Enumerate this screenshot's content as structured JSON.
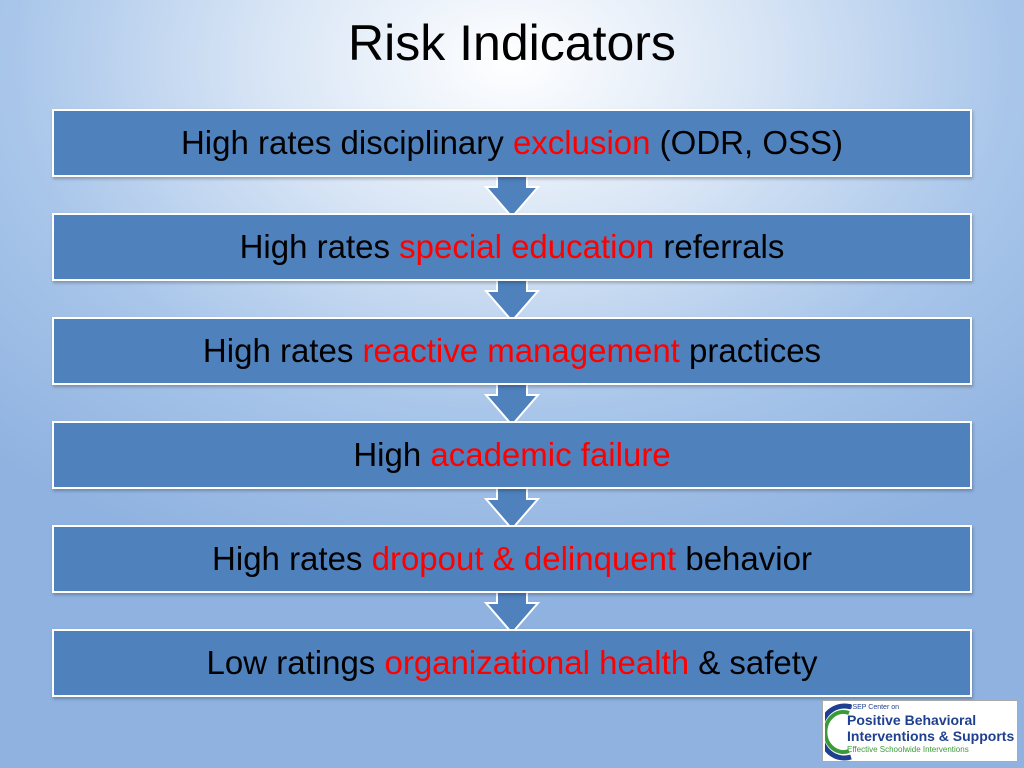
{
  "title": "Risk Indicators",
  "items": [
    {
      "before": "High rates disciplinary ",
      "highlight": "exclusion",
      "after": " (ODR, OSS)"
    },
    {
      "before": "High rates ",
      "highlight": "special education",
      "after": " referrals"
    },
    {
      "before": "High rates ",
      "highlight": "reactive management",
      "after": " practices"
    },
    {
      "before": "High ",
      "highlight": "academic failure"
    },
    {
      "before": "High rates ",
      "highlight": "dropout & delinquent",
      "after": " behavior"
    },
    {
      "before": "Low ratings ",
      "highlight": "organizational health",
      "after": " & safety"
    }
  ],
  "logo": {
    "line1": "OSEP Center on",
    "line2": "Positive Behavioral",
    "line3": "Interventions & Supports",
    "line4": "Effective Schoolwide Interventions"
  }
}
